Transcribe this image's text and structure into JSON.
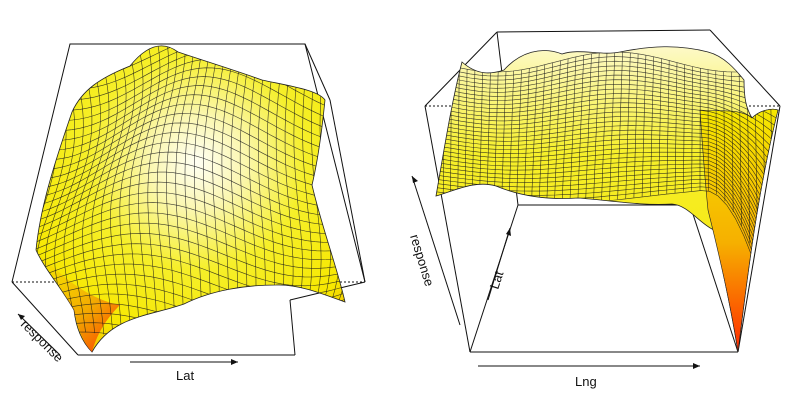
{
  "chart_data": [
    {
      "type": "surface",
      "panel": "left",
      "axes": {
        "x": "",
        "y": "Lat",
        "z": "response"
      },
      "grid": false,
      "colormap": "heat",
      "colors": {
        "low": "#ff2a00",
        "mid": "#f6ef2a",
        "high": "#fffff4"
      },
      "surface_shape": "broad dome with a central ridge, highest near the back and centre, lowest at the front-left corner"
    },
    {
      "type": "surface",
      "panel": "right",
      "axes": {
        "x": "Lng",
        "y": "Lat",
        "z": "response"
      },
      "grid": false,
      "colormap": "heat",
      "colors": {
        "low": "#ff2a00",
        "mid": "#f6ef2a",
        "high": "#fffff4"
      },
      "surface_shape": "same surface viewed from the side: a high plateau that drops steeply at the right edge down to a minimum at the front-right corner"
    }
  ]
}
